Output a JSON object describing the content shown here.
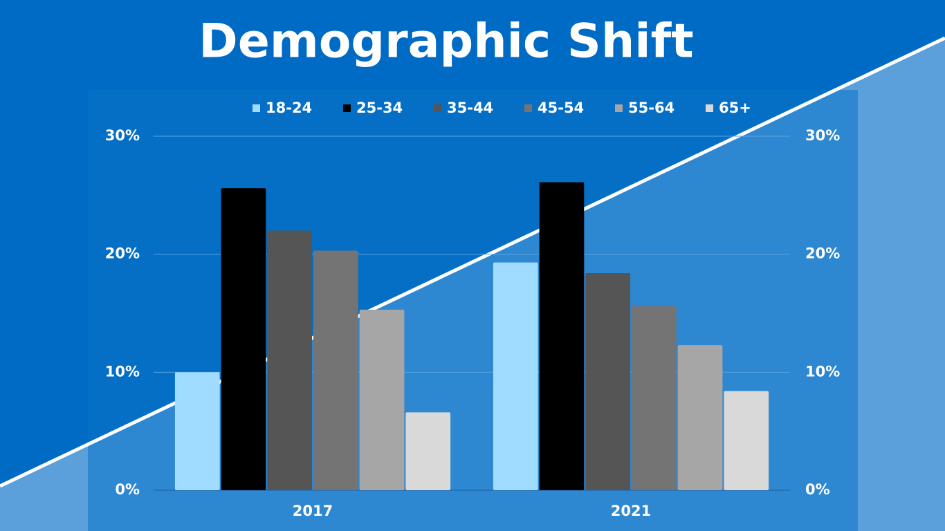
{
  "chart_data": {
    "type": "bar",
    "title": "Demographic Shift",
    "categories": [
      "2017",
      "2021"
    ],
    "series": [
      {
        "name": "18-24",
        "color": "#9fdcff",
        "values": [
          10.0,
          19.3
        ]
      },
      {
        "name": "25-34",
        "color": "#000000",
        "values": [
          25.6,
          26.1
        ]
      },
      {
        "name": "35-44",
        "color": "#555555",
        "values": [
          22.0,
          18.4
        ]
      },
      {
        "name": "45-54",
        "color": "#747474",
        "values": [
          20.3,
          15.6
        ]
      },
      {
        "name": "55-64",
        "color": "#a6a6a6",
        "values": [
          15.3,
          12.3
        ]
      },
      {
        "name": "65+",
        "color": "#d9d9d9",
        "values": [
          6.6,
          8.4
        ]
      }
    ],
    "ylim": [
      0,
      30
    ],
    "yticks": [
      {
        "value": 0,
        "label": "0%"
      },
      {
        "value": 10,
        "label": "10%"
      },
      {
        "value": 20,
        "label": "20%"
      },
      {
        "value": 30,
        "label": "30%"
      }
    ],
    "y2lim": [
      0,
      30
    ],
    "y2ticks": [
      {
        "value": 0,
        "label": "0%"
      },
      {
        "value": 10,
        "label": "10%"
      },
      {
        "value": 20,
        "label": "20%"
      },
      {
        "value": 30,
        "label": "30%"
      }
    ],
    "grid": true,
    "legend": "top"
  }
}
